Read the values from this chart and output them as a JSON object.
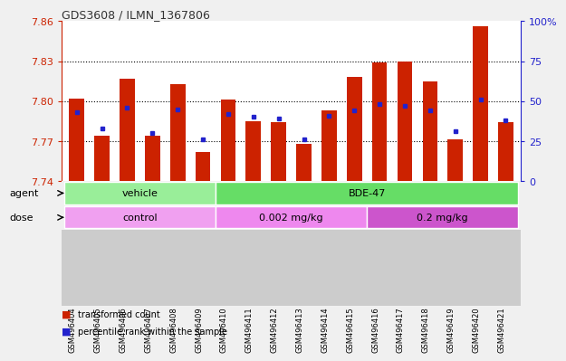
{
  "title": "GDS3608 / ILMN_1367806",
  "samples": [
    "GSM496404",
    "GSM496405",
    "GSM496406",
    "GSM496407",
    "GSM496408",
    "GSM496409",
    "GSM496410",
    "GSM496411",
    "GSM496412",
    "GSM496413",
    "GSM496414",
    "GSM496415",
    "GSM496416",
    "GSM496417",
    "GSM496418",
    "GSM496419",
    "GSM496420",
    "GSM496421"
  ],
  "red_values": [
    7.802,
    7.774,
    7.817,
    7.774,
    7.813,
    7.762,
    7.801,
    7.785,
    7.784,
    7.768,
    7.793,
    7.818,
    7.829,
    7.83,
    7.815,
    7.771,
    7.856,
    7.784
  ],
  "blue_percentiles": [
    43,
    33,
    46,
    30,
    45,
    26,
    42,
    40,
    39,
    26,
    41,
    44,
    48,
    47,
    44,
    31,
    51,
    38
  ],
  "ymin": 7.74,
  "ymax": 7.86,
  "yticks": [
    7.74,
    7.77,
    7.8,
    7.83,
    7.86
  ],
  "right_yticks": [
    0,
    25,
    50,
    75,
    100
  ],
  "agent_groups": [
    {
      "label": "vehicle",
      "start": 0,
      "end": 6,
      "color": "#99ee99"
    },
    {
      "label": "BDE-47",
      "start": 6,
      "end": 18,
      "color": "#66dd66"
    }
  ],
  "dose_groups": [
    {
      "label": "control",
      "start": 0,
      "end": 6,
      "color": "#f0a0f0"
    },
    {
      "label": "0.002 mg/kg",
      "start": 6,
      "end": 12,
      "color": "#ee88ee"
    },
    {
      "label": "0.2 mg/kg",
      "start": 12,
      "end": 18,
      "color": "#cc55cc"
    }
  ],
  "bar_color": "#cc2200",
  "dot_color": "#2222cc",
  "fig_bg": "#f0f0f0",
  "plot_bg": "#ffffff",
  "left_axis_color": "#cc2200",
  "right_axis_color": "#2222cc",
  "tick_area_bg": "#cccccc"
}
